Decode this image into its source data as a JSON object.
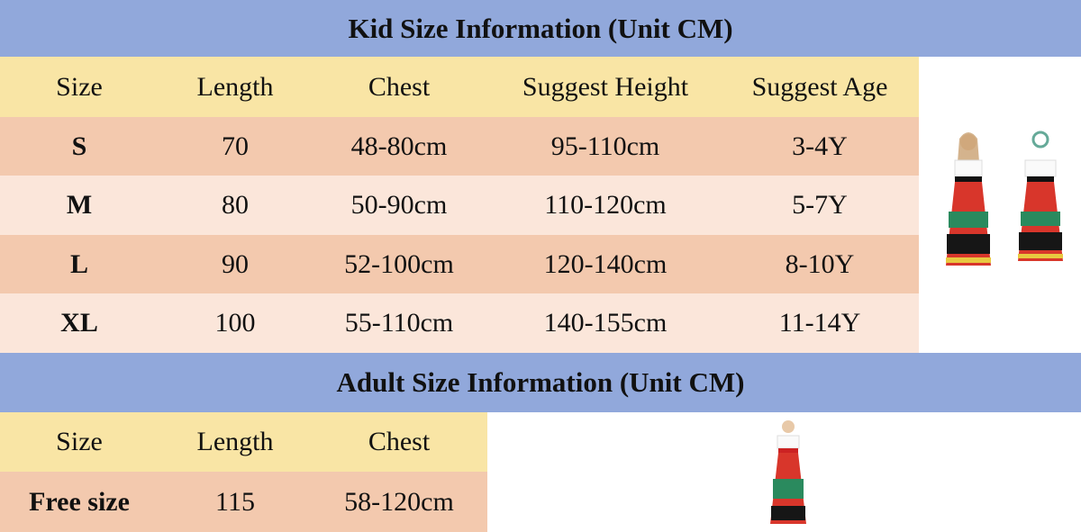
{
  "kid": {
    "title": "Kid Size Information (Unit CM)",
    "headers": [
      "Size",
      "Length",
      "Chest",
      "Suggest Height",
      "Suggest Age"
    ],
    "rows": [
      [
        "S",
        "70",
        "48-80cm",
        "95-110cm",
        "3-4Y"
      ],
      [
        "M",
        "80",
        "50-90cm",
        "110-120cm",
        "5-7Y"
      ],
      [
        "L",
        "90",
        "52-100cm",
        "120-140cm",
        "8-10Y"
      ],
      [
        "XL",
        "100",
        "55-110cm",
        "140-155cm",
        "11-14Y"
      ]
    ]
  },
  "adult": {
    "title": "Adult Size Information (Unit CM)",
    "headers": [
      "Size",
      "Length",
      "Chest"
    ],
    "rows": [
      [
        "Free size",
        "115",
        "58-120cm"
      ]
    ]
  },
  "colors": {
    "title_band": "#91a8db",
    "header_row": "#f9e5a5",
    "row_dark": "#f3c9ae",
    "row_light": "#fbe6da"
  }
}
